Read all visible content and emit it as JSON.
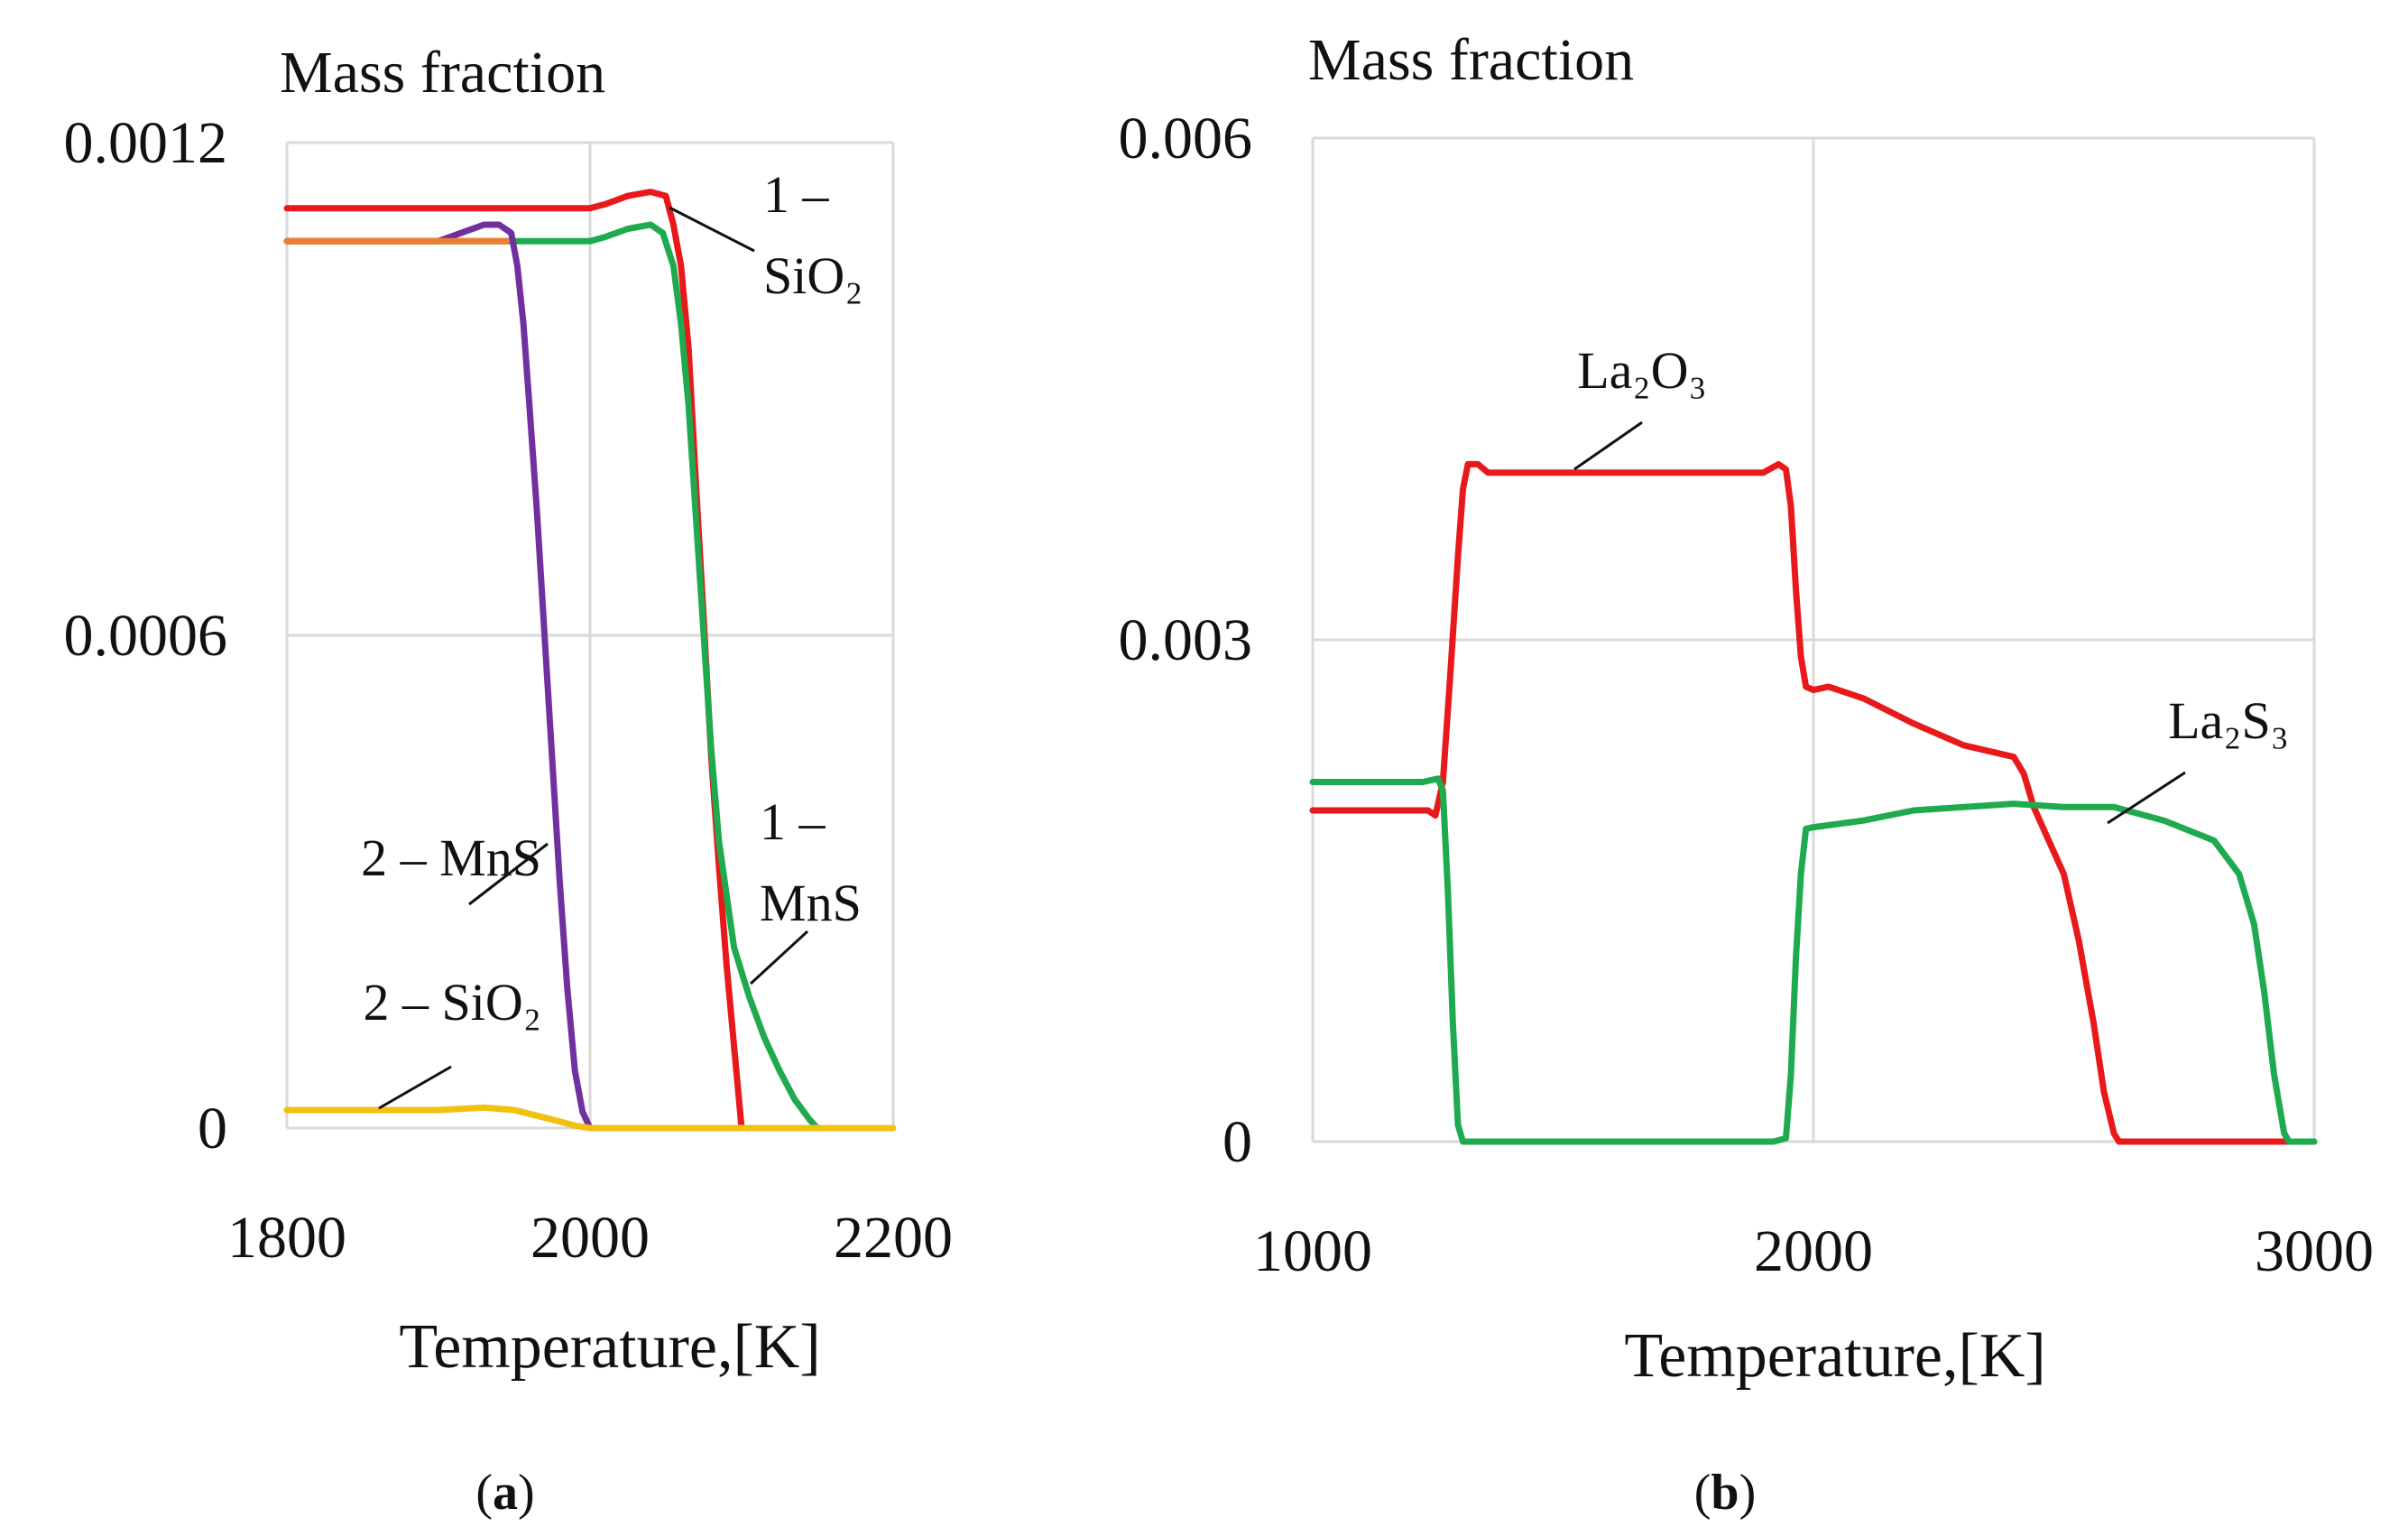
{
  "colors": {
    "red": "#e8191b",
    "green": "#1faa4f",
    "purple": "#7030a0",
    "orange": "#ed7d31",
    "yellow": "#f2c00f",
    "grid": "#d9d9d9"
  },
  "chart_data": [
    {
      "type": "line",
      "panel_label": "(a)",
      "panel_letter": "a",
      "ylabel": "Mass fraction",
      "xlabel": "Temperature,[K]",
      "xlim": [
        1800,
        2200
      ],
      "ylim": [
        0,
        0.0012
      ],
      "x_ticks": [
        "1800",
        "2000",
        "2200"
      ],
      "y_ticks": [
        "0",
        "0.0006",
        "0.0012"
      ],
      "grid": true,
      "annotations": [
        {
          "text_lines": [
            "1 –",
            "SiO₂"
          ],
          "series": "1 – SiO2"
        },
        {
          "text_lines": [
            "1 –",
            "MnS"
          ],
          "series": "1 – MnS"
        },
        {
          "text_lines": [
            "2 – MnS"
          ],
          "series": "2 – MnS"
        },
        {
          "text_lines": [
            "2 – SiO₂"
          ],
          "series": "2 – SiO2"
        }
      ],
      "series": [
        {
          "name": "1 – SiO2",
          "color": "#e8191b",
          "points": [
            [
              1800,
              0.00112
            ],
            [
              2000,
              0.00112
            ],
            [
              2010,
              0.001125
            ],
            [
              2025,
              0.001135
            ],
            [
              2040,
              0.00114
            ],
            [
              2050,
              0.001135
            ],
            [
              2055,
              0.0011
            ],
            [
              2060,
              0.00105
            ],
            [
              2065,
              0.00095
            ],
            [
              2070,
              0.00078
            ],
            [
              2075,
              0.00062
            ],
            [
              2080,
              0.00045
            ],
            [
              2085,
              0.00032
            ],
            [
              2090,
              0.0002
            ],
            [
              2095,
              0.0001
            ],
            [
              2100,
              0.0
            ]
          ]
        },
        {
          "name": "1 – MnS",
          "color": "#1faa4f",
          "points": [
            [
              1800,
              0.00108
            ],
            [
              2000,
              0.00108
            ],
            [
              2010,
              0.001085
            ],
            [
              2025,
              0.001095
            ],
            [
              2040,
              0.0011
            ],
            [
              2048,
              0.00109
            ],
            [
              2055,
              0.00105
            ],
            [
              2060,
              0.00098
            ],
            [
              2065,
              0.00088
            ],
            [
              2070,
              0.00074
            ],
            [
              2075,
              0.0006
            ],
            [
              2080,
              0.00046
            ],
            [
              2085,
              0.00035
            ],
            [
              2095,
              0.00022
            ],
            [
              2105,
              0.00016
            ],
            [
              2115,
              0.00011
            ],
            [
              2125,
              7e-05
            ],
            [
              2135,
              3.5e-05
            ],
            [
              2145,
              1e-05
            ],
            [
              2150,
              0.0
            ]
          ]
        },
        {
          "name": "2 – MnS",
          "color": "#7030a0",
          "points": [
            [
              1800,
              0.00108
            ],
            [
              1900,
              0.00108
            ],
            [
              1915,
              0.00109
            ],
            [
              1930,
              0.0011
            ],
            [
              1940,
              0.0011
            ],
            [
              1948,
              0.00109
            ],
            [
              1952,
              0.00105
            ],
            [
              1956,
              0.00098
            ],
            [
              1960,
              0.00088
            ],
            [
              1965,
              0.00075
            ],
            [
              1970,
              0.0006
            ],
            [
              1975,
              0.00045
            ],
            [
              1980,
              0.0003
            ],
            [
              1985,
              0.00017
            ],
            [
              1990,
              7e-05
            ],
            [
              1995,
              2e-05
            ],
            [
              2000,
              0.0
            ]
          ]
        },
        {
          "name": "2 – orange",
          "color": "#ed7d31",
          "points": [
            [
              1800,
              0.00108
            ],
            [
              1945,
              0.00108
            ]
          ]
        },
        {
          "name": "2 – SiO2",
          "color": "#f2c00f",
          "points": [
            [
              1800,
              2.2e-05
            ],
            [
              1900,
              2.2e-05
            ],
            [
              1930,
              2.5e-05
            ],
            [
              1950,
              2.2e-05
            ],
            [
              1965,
              1.5e-05
            ],
            [
              1980,
              8e-06
            ],
            [
              1990,
              3e-06
            ],
            [
              2000,
              0.0
            ],
            [
              2100,
              0.0
            ],
            [
              2200,
              0.0
            ]
          ]
        }
      ]
    },
    {
      "type": "line",
      "panel_label": "(b)",
      "panel_letter": "b",
      "ylabel": "Mass fraction",
      "xlabel": "Temperature,[K]",
      "xlim": [
        1000,
        3000
      ],
      "ylim": [
        0,
        0.006
      ],
      "x_ticks": [
        "1000",
        "2000",
        "3000"
      ],
      "y_ticks": [
        "0",
        "0.003",
        "0.006"
      ],
      "grid": true,
      "annotations": [
        {
          "text_lines": [
            "La₂O₃"
          ],
          "series": "La2O3"
        },
        {
          "text_lines": [
            "La₂S₃"
          ],
          "series": "La2S3"
        }
      ],
      "series": [
        {
          "name": "La2O3",
          "color": "#e8191b",
          "points": [
            [
              1000,
              0.00198
            ],
            [
              1230,
              0.00198
            ],
            [
              1245,
              0.00195
            ],
            [
              1260,
              0.00215
            ],
            [
              1275,
              0.0028
            ],
            [
              1290,
              0.0035
            ],
            [
              1300,
              0.0039
            ],
            [
              1310,
              0.00405
            ],
            [
              1330,
              0.00405
            ],
            [
              1350,
              0.004
            ],
            [
              1900,
              0.004
            ],
            [
              1930,
              0.00405
            ],
            [
              1945,
              0.00402
            ],
            [
              1955,
              0.0038
            ],
            [
              1965,
              0.0033
            ],
            [
              1975,
              0.0029
            ],
            [
              1985,
              0.00272
            ],
            [
              2000,
              0.0027
            ],
            [
              2030,
              0.00272
            ],
            [
              2100,
              0.00265
            ],
            [
              2200,
              0.0025
            ],
            [
              2300,
              0.00237
            ],
            [
              2400,
              0.0023
            ],
            [
              2420,
              0.0022
            ],
            [
              2440,
              0.002
            ],
            [
              2470,
              0.0018
            ],
            [
              2500,
              0.0016
            ],
            [
              2530,
              0.0012
            ],
            [
              2560,
              0.0007
            ],
            [
              2580,
              0.0003
            ],
            [
              2600,
              5e-05
            ],
            [
              2610,
              0.0
            ],
            [
              3000,
              0.0
            ]
          ]
        },
        {
          "name": "La2S3",
          "color": "#1faa4f",
          "points": [
            [
              1000,
              0.00215
            ],
            [
              1220,
              0.00215
            ],
            [
              1250,
              0.00217
            ],
            [
              1260,
              0.0021
            ],
            [
              1270,
              0.0015
            ],
            [
              1280,
              0.0007
            ],
            [
              1290,
              0.0001
            ],
            [
              1300,
              0.0
            ],
            [
              1920,
              0.0
            ],
            [
              1945,
              2e-05
            ],
            [
              1955,
              0.0004
            ],
            [
              1965,
              0.0011
            ],
            [
              1975,
              0.0016
            ],
            [
              1985,
              0.00187
            ],
            [
              2000,
              0.00188
            ],
            [
              2100,
              0.00192
            ],
            [
              2200,
              0.00198
            ],
            [
              2300,
              0.002
            ],
            [
              2400,
              0.00202
            ],
            [
              2500,
              0.002
            ],
            [
              2600,
              0.002
            ],
            [
              2700,
              0.00192
            ],
            [
              2800,
              0.0018
            ],
            [
              2850,
              0.0016
            ],
            [
              2880,
              0.0013
            ],
            [
              2900,
              0.0009
            ],
            [
              2920,
              0.0004
            ],
            [
              2940,
              5e-05
            ],
            [
              2950,
              0.0
            ],
            [
              3000,
              0.0
            ]
          ]
        }
      ]
    }
  ]
}
